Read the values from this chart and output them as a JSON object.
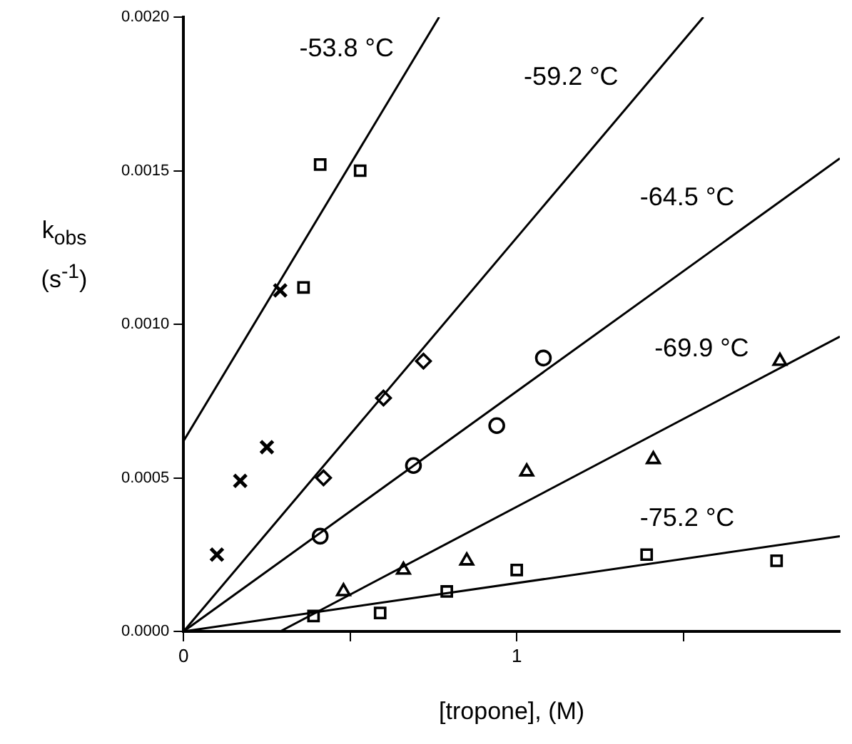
{
  "chart_data": {
    "type": "scatter",
    "xlabel": "[tropone], (M)",
    "ylabel": "k$_{obs}$ (s$^{-1}$)",
    "xlim": [
      0,
      1.97
    ],
    "xticks": [
      0,
      {
        "value": 0.5,
        "label": null
      },
      1,
      {
        "value": 1.5,
        "label": null
      }
    ],
    "ylim": [
      0,
      0.002
    ],
    "yticks": [
      {
        "value": 0,
        "label": "0.0000"
      },
      {
        "value": 0.0005,
        "label": "0.0005"
      },
      {
        "value": 0.001,
        "label": "0.0010"
      },
      {
        "value": 0.0015,
        "label": "0.0015"
      },
      {
        "value": 0.002,
        "label": "0.0020"
      }
    ],
    "grid": false,
    "legend": false,
    "series": [
      {
        "type": "scatter",
        "marker": "cross",
        "color": "#000000",
        "x": [
          0.1,
          0.17,
          0.25,
          0.29
        ],
        "values": [
          0.00025,
          0.00049,
          0.0006,
          0.00111
        ]
      },
      {
        "type": "scatter",
        "marker": "square",
        "color": "#000000",
        "x": [
          0.36,
          0.41,
          0.53
        ],
        "values": [
          0.00112,
          0.00152,
          0.0015
        ]
      },
      {
        "type": "scatter",
        "marker": "diamond",
        "color": "#000000",
        "x": [
          0.42,
          0.6,
          0.72
        ],
        "values": [
          0.0005,
          0.00076,
          0.00088
        ]
      },
      {
        "type": "scatter",
        "marker": "circle",
        "color": "#000000",
        "x": [
          0.41,
          0.69,
          0.94,
          1.08
        ],
        "values": [
          0.00031,
          0.00054,
          0.00067,
          0.00089
        ]
      },
      {
        "type": "scatter",
        "marker": "triangle",
        "color": "#000000",
        "x": [
          0.48,
          0.66,
          0.85,
          1.03,
          1.41,
          1.79
        ],
        "values": [
          0.00013,
          0.0002,
          0.00023,
          0.00052,
          0.00056,
          0.00088
        ]
      },
      {
        "type": "scatter",
        "marker": "square",
        "color": "#000000",
        "x": [
          0.39,
          0.59,
          0.79,
          1.0,
          1.39,
          1.78
        ],
        "values": [
          5e-05,
          6e-05,
          0.00013,
          0.0002,
          0.00025,
          0.00023
        ]
      },
      {
        "type": "line",
        "name": "-53.8 °C",
        "marker": "none",
        "color": "#000000",
        "x": [
          0,
          0.767
        ],
        "values": [
          0.00062,
          0.002
        ]
      },
      {
        "type": "line",
        "name": "-59.2 °C",
        "marker": "none",
        "color": "#000000",
        "x": [
          0,
          1.56
        ],
        "values": [
          0,
          0.002
        ]
      },
      {
        "type": "line",
        "name": "-64.5 °C",
        "marker": "none",
        "color": "#000000",
        "x": [
          0,
          1.97
        ],
        "values": [
          0,
          0.00154
        ]
      },
      {
        "type": "line",
        "name": "-69.9 °C",
        "marker": "none",
        "color": "#000000",
        "x": [
          0.29,
          1.97
        ],
        "values": [
          0,
          0.00096
        ]
      },
      {
        "type": "line",
        "name": "-75.2 °C",
        "marker": "none",
        "color": "#000000",
        "x": [
          0,
          1.97
        ],
        "values": [
          0,
          0.00031
        ]
      }
    ]
  }
}
